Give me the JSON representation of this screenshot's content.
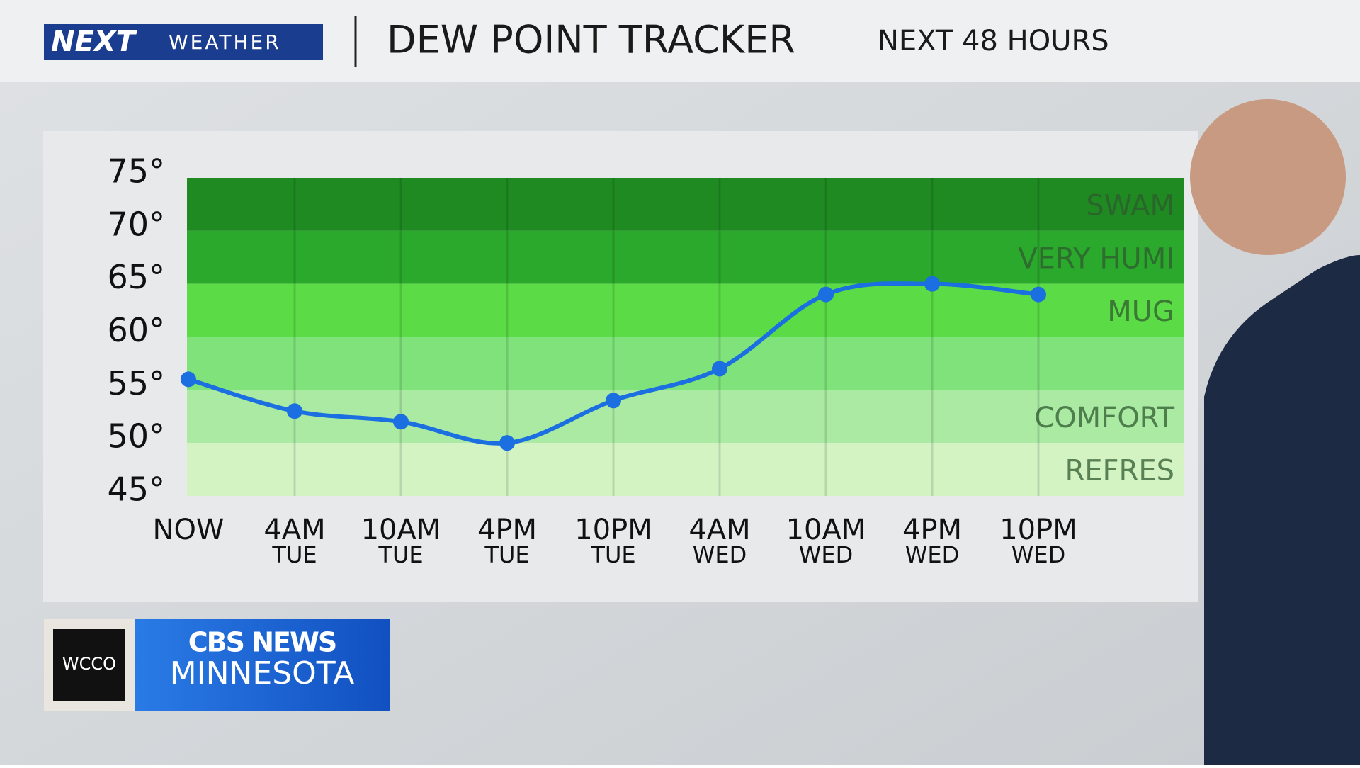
{
  "branding": {
    "logo_next": "NEXT",
    "logo_weather": "WEATHER",
    "station": "WCCO",
    "network": "CBS NEWS",
    "region": "MINNESOTA"
  },
  "chart_data": {
    "type": "line",
    "title": "DEW POINT TRACKER",
    "subtitle": "NEXT 48 HOURS",
    "categories": [
      "NOW",
      "4AM",
      "10AM",
      "4PM",
      "10PM",
      "4AM",
      "10AM",
      "4PM",
      "10PM"
    ],
    "days": [
      null,
      "TUE",
      "TUE",
      "TUE",
      "TUE",
      "WED",
      "WED",
      "WED",
      "WED"
    ],
    "series": [
      {
        "color": "#1b6fe0",
        "values": [
          56,
          53,
          52,
          50,
          54,
          57,
          64,
          65,
          64
        ]
      }
    ],
    "ylim": [
      45,
      75
    ],
    "yticks": [
      {
        "value": 45,
        "label": "45°"
      },
      {
        "value": 50,
        "label": "50°"
      },
      {
        "value": 55,
        "label": "55°"
      },
      {
        "value": 60,
        "label": "60°"
      },
      {
        "value": 65,
        "label": "65°"
      },
      {
        "value": 70,
        "label": "70°"
      },
      {
        "value": 75,
        "label": "75°"
      }
    ],
    "bands": [
      {
        "from": 70,
        "to": 75,
        "color": "#1f8a21",
        "label": "SWAM"
      },
      {
        "from": 65,
        "to": 70,
        "color": "#2ba92c",
        "label": "VERY HUMI"
      },
      {
        "from": 60,
        "to": 65,
        "color": "#5bdb45",
        "label": "MUG"
      },
      {
        "from": 55,
        "to": 60,
        "color": "#7fe27a",
        "label": null
      },
      {
        "from": 50,
        "to": 55,
        "color": "#aaeaa3",
        "label": "COMFORT"
      },
      {
        "from": 45,
        "to": 50,
        "color": "#d3f3c3",
        "label": "REFRES"
      }
    ],
    "grid": true
  }
}
